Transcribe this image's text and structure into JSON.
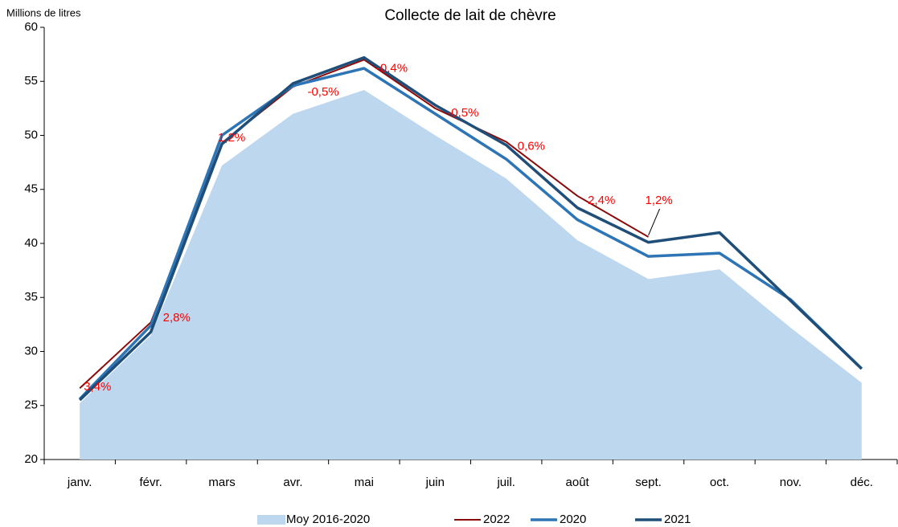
{
  "chart_data": {
    "type": "line",
    "title": "Collecte de lait de chèvre",
    "y_label": "Millions de litres",
    "categories": [
      "janv.",
      "févr.",
      "mars",
      "avr.",
      "mai",
      "juin",
      "juil.",
      "août",
      "sept.",
      "oct.",
      "nov.",
      "déc."
    ],
    "series": [
      {
        "name": "Moy 2016-2020",
        "color": "#bdd7ee",
        "kind": "area",
        "values": [
          25.2,
          31.5,
          47.2,
          52.0,
          54.2,
          50.0,
          46.0,
          40.3,
          36.7,
          37.6,
          32.2,
          27.1
        ]
      },
      {
        "name": "2022",
        "color": "#8b0a0a",
        "kind": "line",
        "values": [
          26.6,
          32.7,
          49.3,
          54.5,
          57.0,
          52.5,
          49.4,
          44.4,
          40.6,
          null,
          null,
          null
        ]
      },
      {
        "name": "2020",
        "color": "#2e75b6",
        "kind": "line",
        "values": [
          25.6,
          32.4,
          50.0,
          54.6,
          56.2,
          52.0,
          47.8,
          42.2,
          38.8,
          39.1,
          34.8,
          28.4
        ]
      },
      {
        "name": "2021",
        "color": "#1f4e79",
        "kind": "line",
        "values": [
          25.5,
          31.8,
          49.2,
          54.8,
          57.2,
          52.8,
          49.1,
          43.3,
          40.1,
          41.0,
          34.7,
          28.4
        ]
      }
    ],
    "annotations": [
      "3,4%",
      "2,8%",
      "1,2%",
      "-0,5%",
      "-0,4%",
      "-0,5%",
      "0,6%",
      "2,4%",
      "1,2%"
    ],
    "ylim": [
      20,
      60
    ],
    "yticks": [
      20,
      25,
      30,
      35,
      40,
      45,
      50,
      55,
      60
    ],
    "grid": false
  }
}
